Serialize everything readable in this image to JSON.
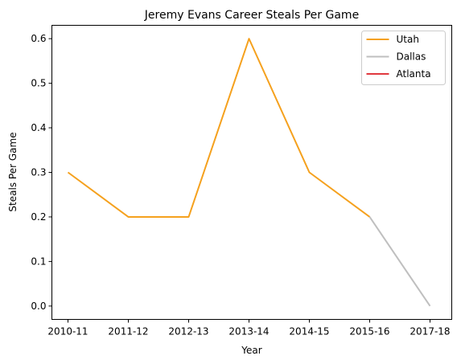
{
  "chart_data": {
    "type": "line",
    "title": "Jeremy Evans Career Steals Per Game",
    "xlabel": "Year",
    "ylabel": "Steals Per Game",
    "categories": [
      "2010-11",
      "2011-12",
      "2012-13",
      "2013-14",
      "2014-15",
      "2015-16",
      "2017-18"
    ],
    "ylim": [
      -0.03,
      0.63
    ],
    "yticks": [
      0.0,
      0.1,
      0.2,
      0.3,
      0.4,
      0.5,
      0.6
    ],
    "ytick_labels": [
      "0.0",
      "0.1",
      "0.2",
      "0.3",
      "0.4",
      "0.5",
      "0.6"
    ],
    "grid": false,
    "legend_position": "top-right",
    "series": [
      {
        "name": "Utah",
        "color": "#f5a11e",
        "points": [
          {
            "x": "2010-11",
            "y": 0.3
          },
          {
            "x": "2011-12",
            "y": 0.2
          },
          {
            "x": "2012-13",
            "y": 0.2
          },
          {
            "x": "2013-14",
            "y": 0.6
          },
          {
            "x": "2014-15",
            "y": 0.3
          },
          {
            "x": "2015-16",
            "y": 0.2
          }
        ]
      },
      {
        "name": "Dallas",
        "color": "#bfbfbf",
        "points": [
          {
            "x": "2015-16",
            "y": 0.2
          },
          {
            "x": "2017-18",
            "y": 0.0
          }
        ]
      },
      {
        "name": "Atlanta",
        "color": "#e0383e",
        "points": []
      }
    ]
  }
}
